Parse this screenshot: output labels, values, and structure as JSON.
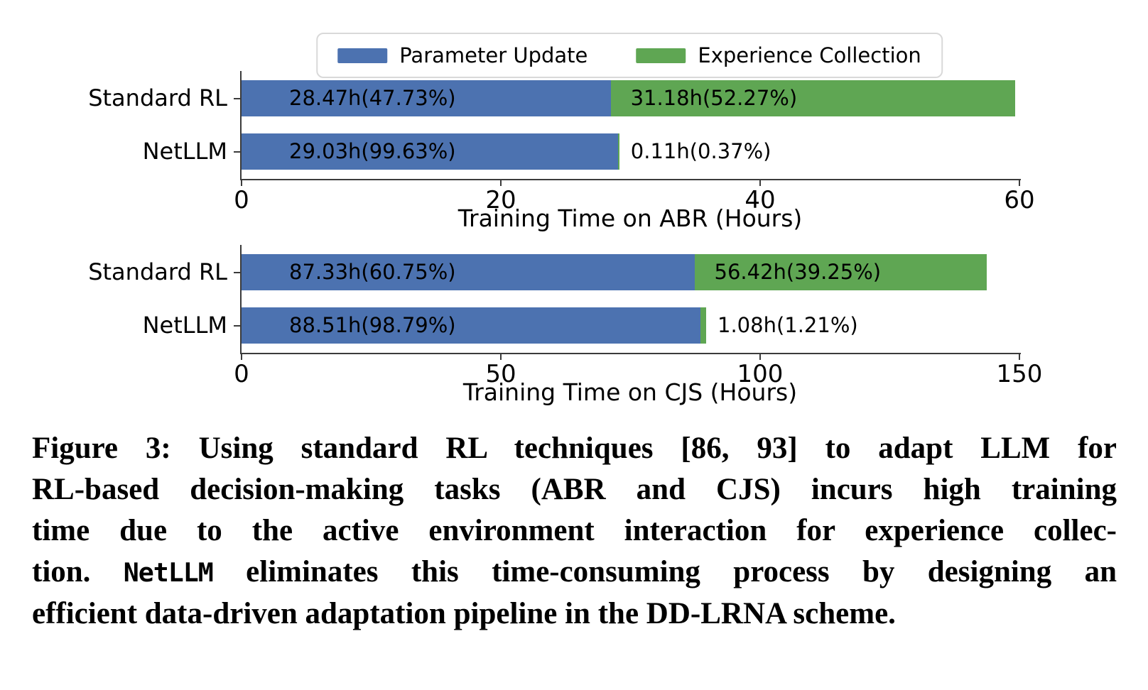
{
  "colors": {
    "parameter_update_blue": "#4C72B0",
    "experience_collection_green": "#5FA653",
    "axis": "#3b3b3b",
    "text": "#000000",
    "legend_border": "#d9d9d9",
    "background": "#ffffff"
  },
  "legend": {
    "items": [
      {
        "label": "Parameter Update",
        "color": "#4C72B0",
        "swatch": "parameter-update-swatch"
      },
      {
        "label": "Experience Collection",
        "color": "#5FA653",
        "swatch": "experience-collection-swatch"
      }
    ]
  },
  "chart_data": [
    {
      "type": "bar",
      "orientation": "horizontal",
      "stacked": true,
      "title": "",
      "categories": [
        "Standard RL",
        "NetLLM"
      ],
      "series": [
        {
          "name": "Parameter Update",
          "values": [
            28.47,
            29.03
          ]
        },
        {
          "name": "Experience Collection",
          "values": [
            31.18,
            0.11
          ]
        }
      ],
      "segment_labels": [
        [
          "28.47h(47.73%)",
          "31.18h(52.27%)"
        ],
        [
          "29.03h(99.63%)",
          "0.11h(0.37%)"
        ]
      ],
      "xlabel": "Training Time on ABR (Hours)",
      "ylabel": "",
      "xlim": [
        0,
        60
      ],
      "xticks": [
        "0",
        "20",
        "40",
        "60"
      ],
      "grid": false,
      "legend_position": "above"
    },
    {
      "type": "bar",
      "orientation": "horizontal",
      "stacked": true,
      "title": "",
      "categories": [
        "Standard RL",
        "NetLLM"
      ],
      "series": [
        {
          "name": "Parameter Update",
          "values": [
            87.33,
            88.51
          ]
        },
        {
          "name": "Experience Collection",
          "values": [
            56.42,
            1.08
          ]
        }
      ],
      "segment_labels": [
        [
          "87.33h(60.75%)",
          "56.42h(39.25%)"
        ],
        [
          "88.51h(98.79%)",
          "1.08h(1.21%)"
        ]
      ],
      "xlabel": "Training Time on CJS (Hours)",
      "ylabel": "",
      "xlim": [
        0,
        150
      ],
      "xticks": [
        "0",
        "50",
        "100",
        "150"
      ],
      "grid": false,
      "legend_position": "above"
    }
  ],
  "caption": {
    "lines": [
      {
        "parts": [
          {
            "text": "Figure 3: Using standard RL techniques [86, 93] to adapt LLM for",
            "mono": false
          }
        ]
      },
      {
        "parts": [
          {
            "text": "RL-based decision-making tasks (ABR and CJS) incurs high training",
            "mono": false
          }
        ]
      },
      {
        "parts": [
          {
            "text": "time due to the active environment interaction for experience collec-",
            "mono": false
          }
        ]
      },
      {
        "parts": [
          {
            "text": "tion. ",
            "mono": false
          },
          {
            "text": "NetLLM",
            "mono": true
          },
          {
            "text": " eliminates this time-consuming process by designing an",
            "mono": false
          }
        ]
      },
      {
        "parts": [
          {
            "text": "efficient data-driven adaptation pipeline in the DD-LRNA scheme.",
            "mono": false
          }
        ]
      }
    ]
  }
}
